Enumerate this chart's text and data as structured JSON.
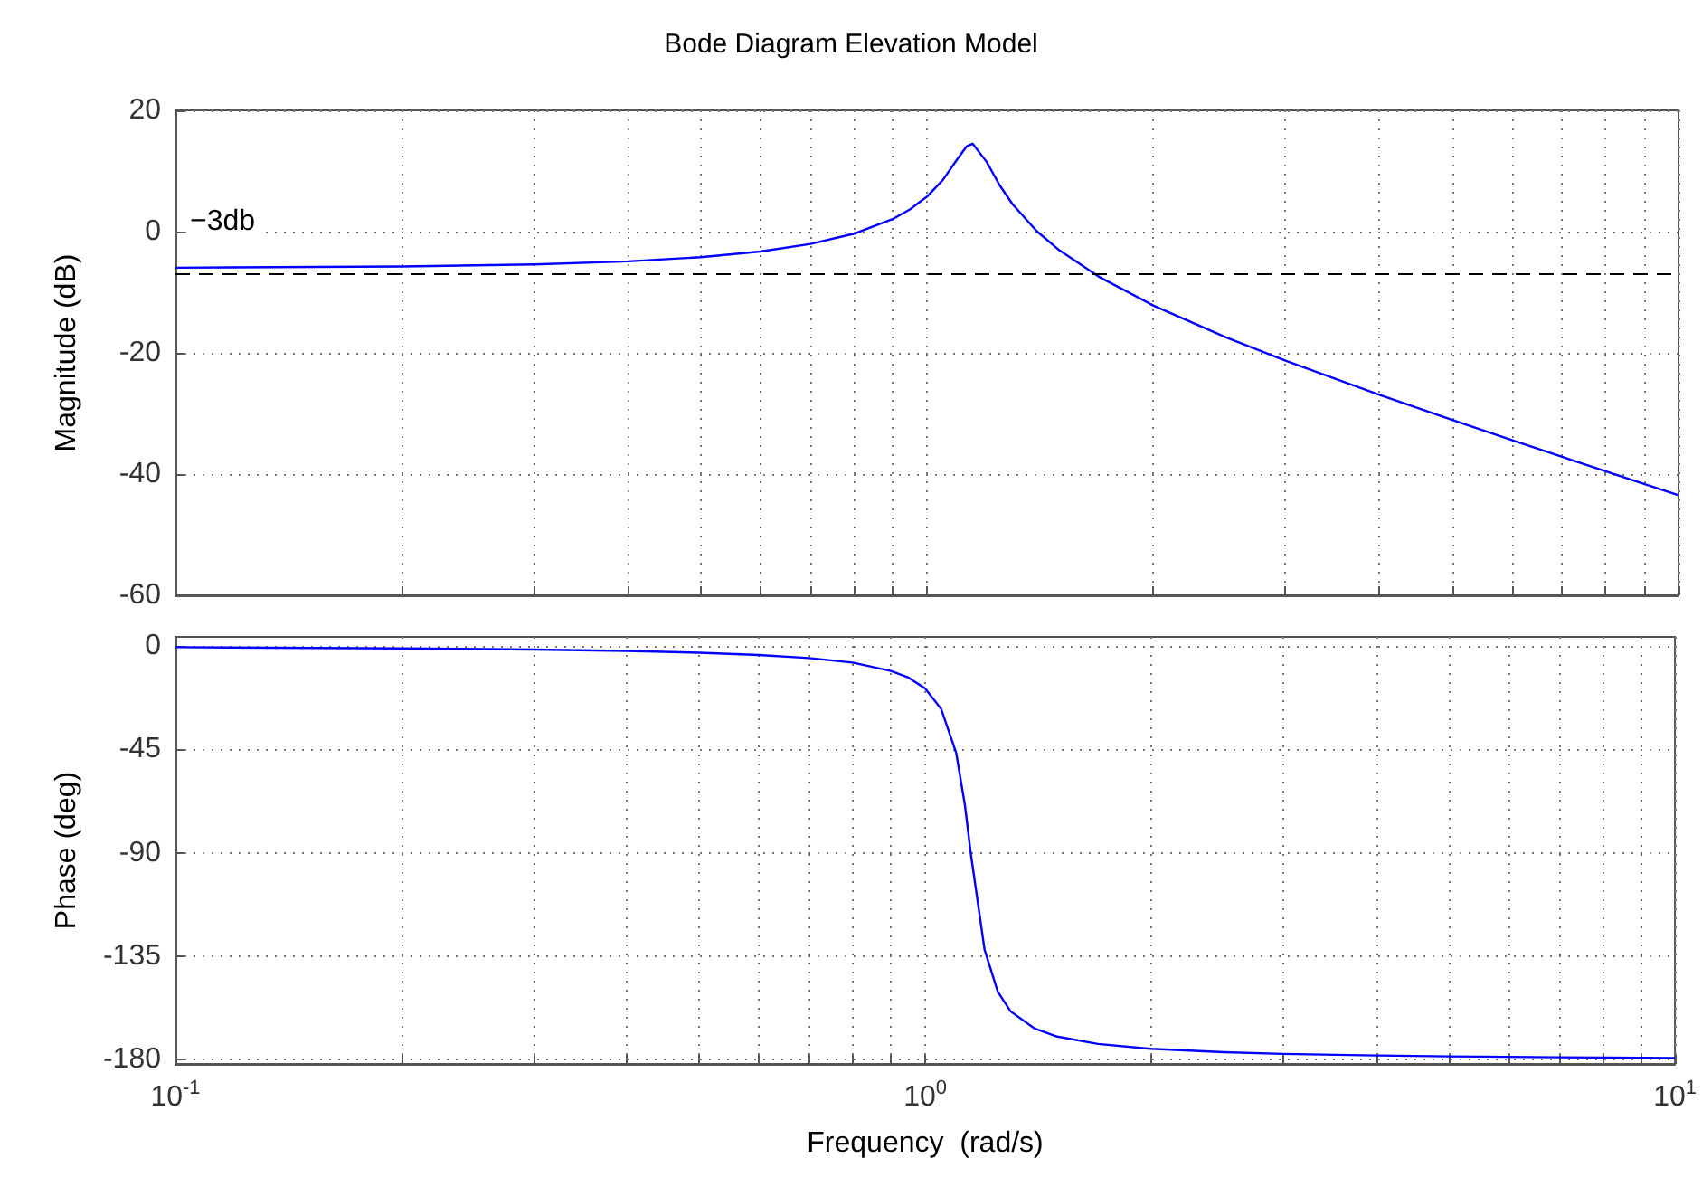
{
  "chart_data": [
    {
      "type": "line",
      "title": "Bode Diagram Elevation Model",
      "ylabel": "Magnitude (dB)",
      "x": [
        0.1,
        0.2,
        0.3,
        0.4,
        0.5,
        0.6,
        0.7,
        0.8,
        0.9,
        0.95,
        1.0,
        1.05,
        1.1,
        1.13,
        1.15,
        1.2,
        1.25,
        1.3,
        1.4,
        1.5,
        1.7,
        2,
        2.5,
        3,
        4,
        5,
        6,
        7,
        8,
        10
      ],
      "series": [
        {
          "color": "#0000ff",
          "values": [
            -5.95,
            -5.75,
            -5.41,
            -4.91,
            -4.21,
            -3.28,
            -2.04,
            -0.34,
            2.06,
            3.69,
            5.77,
            8.53,
            12.13,
            14.1,
            14.5,
            11.55,
            7.61,
            4.51,
            0.08,
            -3.07,
            -7.56,
            -12.18,
            -17.44,
            -21.3,
            -26.93,
            -31.08,
            -34.39,
            -37.16,
            -39.54,
            -43.48
          ]
        }
      ],
      "ref_lines": [
        {
          "axis": "y",
          "value": -7,
          "label": "−3db",
          "color": "#000000",
          "line_style": "dashed"
        }
      ],
      "xlim": [
        0.1,
        10
      ],
      "xticks": [
        {
          "value": 0.1,
          "label": null
        },
        {
          "value": 0.2,
          "label": null
        },
        {
          "value": 0.3,
          "label": null
        },
        {
          "value": 0.4,
          "label": null
        },
        {
          "value": 0.5,
          "label": null
        },
        {
          "value": 0.6,
          "label": null
        },
        {
          "value": 0.7,
          "label": null
        },
        {
          "value": 0.8,
          "label": null
        },
        {
          "value": 0.9,
          "label": null
        },
        {
          "value": 1,
          "label": null
        },
        {
          "value": 2,
          "label": null
        },
        {
          "value": 3,
          "label": null
        },
        {
          "value": 4,
          "label": null
        },
        {
          "value": 5,
          "label": null
        },
        {
          "value": 6,
          "label": null
        },
        {
          "value": 7,
          "label": null
        },
        {
          "value": 8,
          "label": null
        },
        {
          "value": 9,
          "label": null
        },
        {
          "value": 10,
          "label": null
        }
      ],
      "ylim": [
        -60,
        20
      ],
      "yticks": [
        -60,
        -40,
        -20,
        0,
        20
      ],
      "log": "x",
      "grid": true,
      "tick_labels": "y"
    },
    {
      "type": "line",
      "xlabel": "Frequency  (rad/s)",
      "ylabel": "Phase (deg)",
      "x": [
        0.1,
        0.2,
        0.3,
        0.4,
        0.5,
        0.6,
        0.7,
        0.8,
        0.9,
        0.95,
        1.0,
        1.05,
        1.1,
        1.13,
        1.15,
        1.2,
        1.25,
        1.3,
        1.4,
        1.5,
        1.7,
        2,
        2.5,
        3,
        4,
        5,
        6,
        7,
        8,
        10
      ],
      "series": [
        {
          "color": "#0000ff",
          "values": [
            -0.5,
            -1.0,
            -1.5,
            -2.1,
            -2.9,
            -3.9,
            -5.2,
            -7.2,
            -10.8,
            -13.7,
            -18.5,
            -27.3,
            -46.6,
            -69.5,
            -90,
            -132.2,
            -150.6,
            -159.1,
            -166.6,
            -170.1,
            -173.3,
            -175.4,
            -176.9,
            -177.6,
            -178.3,
            -178.7,
            -178.9,
            -179.1,
            -179.2,
            -179.4
          ]
        }
      ],
      "xlim": [
        0.1,
        10
      ],
      "xticks": [
        {
          "value": 0.1,
          "label": "10$^{-1}$"
        },
        {
          "value": 0.2,
          "label": null
        },
        {
          "value": 0.3,
          "label": null
        },
        {
          "value": 0.4,
          "label": null
        },
        {
          "value": 0.5,
          "label": null
        },
        {
          "value": 0.6,
          "label": null
        },
        {
          "value": 0.7,
          "label": null
        },
        {
          "value": 0.8,
          "label": null
        },
        {
          "value": 0.9,
          "label": null
        },
        {
          "value": 1,
          "label": "10$^{0}$"
        },
        {
          "value": 2,
          "label": null
        },
        {
          "value": 3,
          "label": null
        },
        {
          "value": 4,
          "label": null
        },
        {
          "value": 5,
          "label": null
        },
        {
          "value": 6,
          "label": null
        },
        {
          "value": 7,
          "label": null
        },
        {
          "value": 8,
          "label": null
        },
        {
          "value": 9,
          "label": null
        },
        {
          "value": 10,
          "label": "10$^{1}$"
        }
      ],
      "ylim": [
        -182,
        4
      ],
      "yticks": [
        -180,
        -135,
        -90,
        -45,
        0
      ],
      "log": "x",
      "grid": true
    }
  ]
}
